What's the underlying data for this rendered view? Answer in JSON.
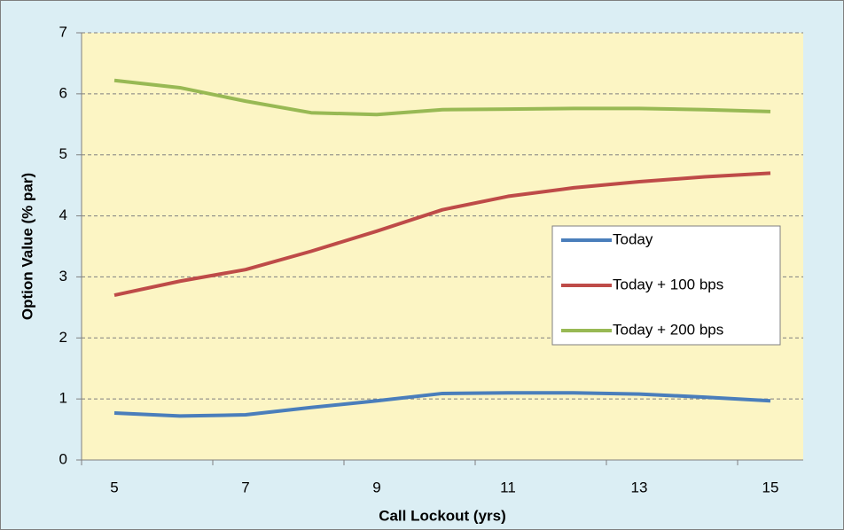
{
  "chart_data": {
    "type": "line",
    "x_label": "Call Lockout (yrs)",
    "y_label": "Option Value (% par)",
    "categories": [
      "5",
      null,
      "7",
      null,
      "9",
      null,
      "11",
      null,
      "13",
      null,
      "15"
    ],
    "series": [
      {
        "name": "Today",
        "color": "#4a7ebb",
        "values": [
          0.77,
          0.72,
          0.74,
          0.86,
          0.97,
          1.09,
          1.1,
          1.1,
          1.08,
          1.03,
          0.97
        ]
      },
      {
        "name": "Today + 100 bps",
        "color": "#be4b48",
        "values": [
          2.7,
          2.93,
          3.12,
          3.42,
          3.75,
          4.1,
          4.32,
          4.46,
          4.56,
          4.64,
          4.7
        ]
      },
      {
        "name": "Today + 200 bps",
        "color": "#98b954",
        "values": [
          6.22,
          6.1,
          5.88,
          5.69,
          5.66,
          5.74,
          5.75,
          5.76,
          5.76,
          5.74,
          5.71
        ]
      }
    ],
    "ylim": [
      0,
      7
    ],
    "yticks": [
      0,
      1,
      2,
      3,
      4,
      5,
      6,
      7
    ],
    "grid": true,
    "legend": "right"
  }
}
